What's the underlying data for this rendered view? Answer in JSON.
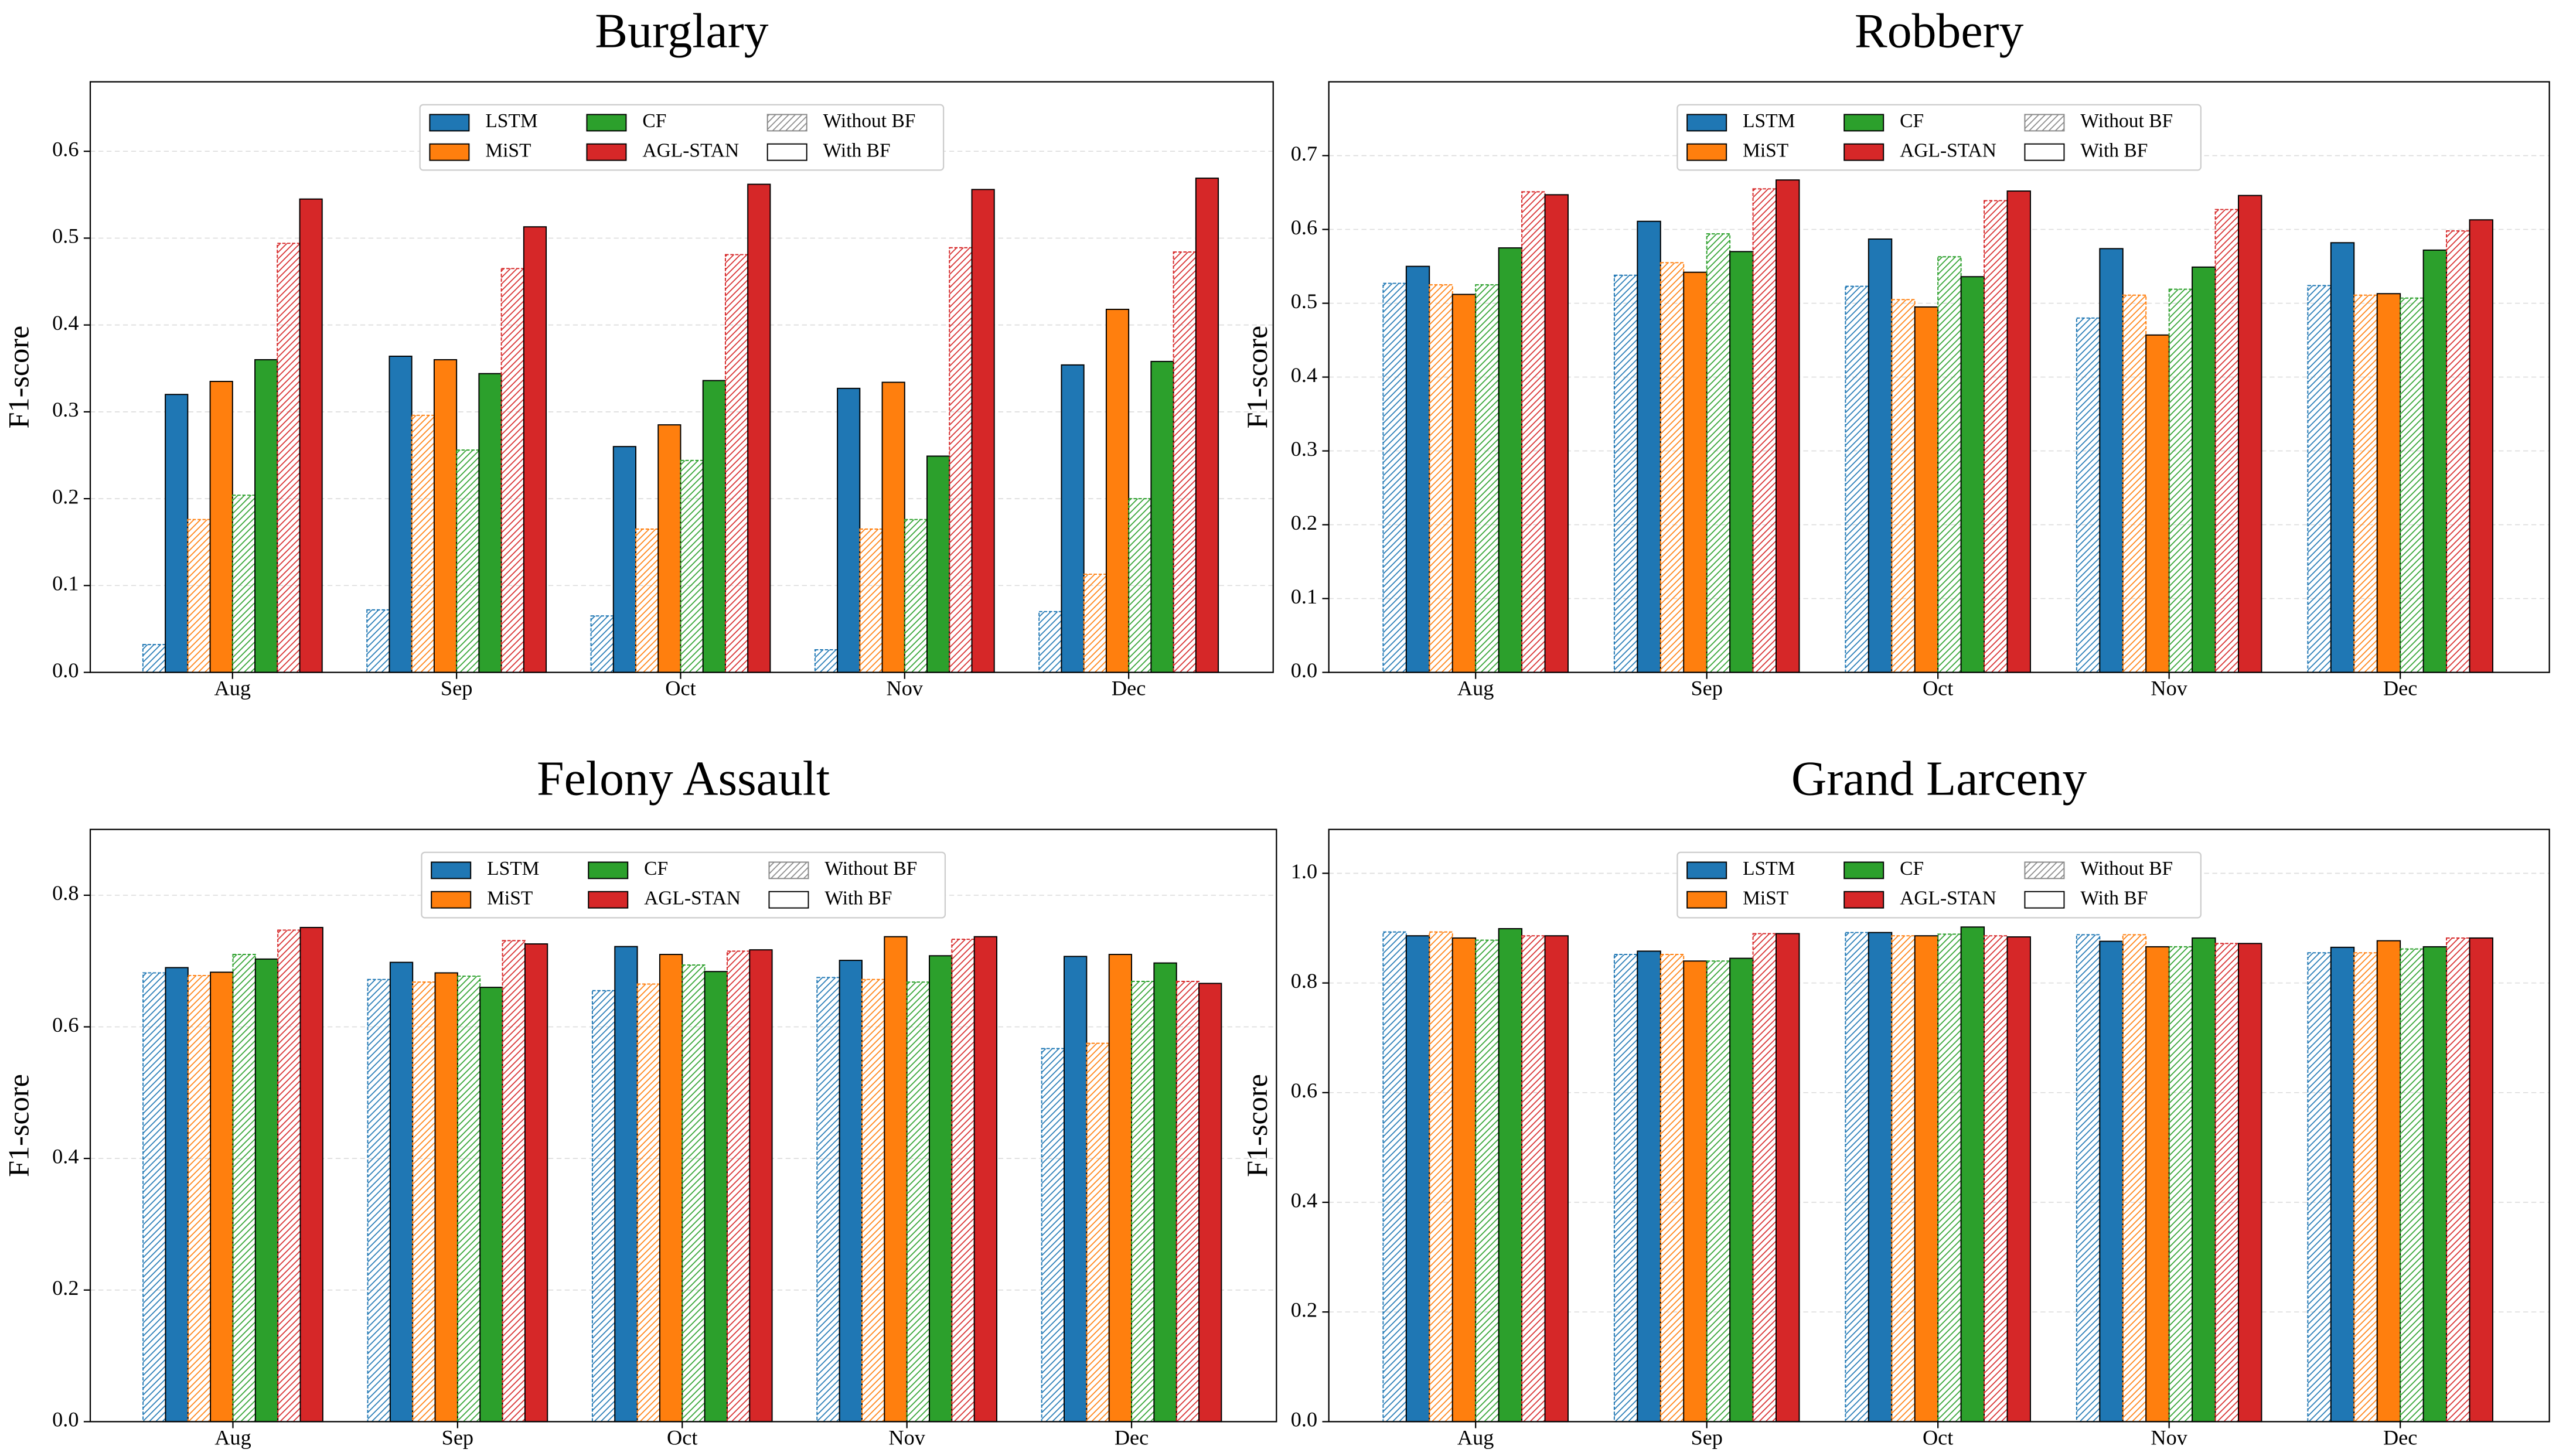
{
  "chart_data": [
    {
      "type": "bar",
      "title": "Burglary",
      "y_label": "F1-score",
      "grid": true,
      "categories": [
        "Aug",
        "Sep",
        "Oct",
        "Nov",
        "Dec"
      ],
      "variants": [
        {
          "name": "Without BF",
          "hatched": true
        },
        {
          "name": "With BF",
          "hatched": false
        }
      ],
      "ylim": [
        0,
        0.68
      ],
      "yticks": [
        {
          "value": 0,
          "label": "0.0"
        },
        0.1,
        0.2,
        0.3,
        0.4,
        0.5,
        0.6
      ],
      "series": [
        {
          "name": "LSTM",
          "color": "#1f77b4",
          "values": [
            0.32,
            0.364,
            0.26,
            0.327,
            0.354
          ],
          "values_without_bf": [
            0.032,
            0.072,
            0.065,
            0.026,
            0.07
          ]
        },
        {
          "name": "MiST",
          "color": "#ff7f0e",
          "values": [
            0.335,
            0.36,
            0.285,
            0.334,
            0.418
          ],
          "values_without_bf": [
            0.176,
            0.296,
            0.165,
            0.165,
            0.113
          ]
        },
        {
          "name": "CF",
          "color": "#2ca02c",
          "values": [
            0.36,
            0.344,
            0.336,
            0.249,
            0.358
          ],
          "values_without_bf": [
            0.204,
            0.256,
            0.244,
            0.176,
            0.2
          ]
        },
        {
          "name": "AGL-STAN",
          "color": "#d62728",
          "values": [
            0.545,
            0.513,
            0.562,
            0.556,
            0.569
          ],
          "values_without_bf": [
            0.494,
            0.465,
            0.481,
            0.489,
            0.484
          ]
        }
      ]
    },
    {
      "type": "bar",
      "title": "Robbery",
      "y_label": "F1-score",
      "grid": true,
      "categories": [
        "Aug",
        "Sep",
        "Oct",
        "Nov",
        "Dec"
      ],
      "variants": [
        {
          "name": "Without BF",
          "hatched": true
        },
        {
          "name": "With BF",
          "hatched": false
        }
      ],
      "ylim": [
        0,
        0.8
      ],
      "yticks": [
        {
          "value": 0,
          "label": "0.0"
        },
        0.1,
        0.2,
        0.3,
        0.4,
        0.5,
        0.6,
        0.7
      ],
      "series": [
        {
          "name": "LSTM",
          "color": "#1f77b4",
          "values": [
            0.55,
            0.611,
            0.587,
            0.574,
            0.582
          ],
          "values_without_bf": [
            0.527,
            0.538,
            0.523,
            0.48,
            0.524
          ]
        },
        {
          "name": "MiST",
          "color": "#ff7f0e",
          "values": [
            0.512,
            0.542,
            0.495,
            0.457,
            0.513
          ],
          "values_without_bf": [
            0.525,
            0.555,
            0.505,
            0.511,
            0.511
          ]
        },
        {
          "name": "CF",
          "color": "#2ca02c",
          "values": [
            0.575,
            0.57,
            0.536,
            0.549,
            0.572
          ],
          "values_without_bf": [
            0.525,
            0.594,
            0.563,
            0.519,
            0.507
          ]
        },
        {
          "name": "AGL-STAN",
          "color": "#d62728",
          "values": [
            0.647,
            0.667,
            0.652,
            0.646,
            0.613
          ],
          "values_without_bf": [
            0.651,
            0.655,
            0.639,
            0.627,
            0.598
          ]
        }
      ]
    },
    {
      "type": "bar",
      "title": "Felony Assault",
      "y_label": "F1-score",
      "grid": true,
      "categories": [
        "Aug",
        "Sep",
        "Oct",
        "Nov",
        "Dec"
      ],
      "variants": [
        {
          "name": "Without BF",
          "hatched": true
        },
        {
          "name": "With BF",
          "hatched": false
        }
      ],
      "ylim": [
        0,
        0.9
      ],
      "yticks": [
        {
          "value": 0,
          "label": "0.0"
        },
        0.2,
        0.4,
        0.6,
        0.8
      ],
      "series": [
        {
          "name": "LSTM",
          "color": "#1f77b4",
          "values": [
            0.69,
            0.698,
            0.722,
            0.701,
            0.707
          ],
          "values_without_bf": [
            0.682,
            0.672,
            0.655,
            0.675,
            0.567
          ]
        },
        {
          "name": "MiST",
          "color": "#ff7f0e",
          "values": [
            0.683,
            0.682,
            0.71,
            0.737,
            0.71
          ],
          "values_without_bf": [
            0.678,
            0.668,
            0.665,
            0.672,
            0.575
          ]
        },
        {
          "name": "CF",
          "color": "#2ca02c",
          "values": [
            0.703,
            0.66,
            0.684,
            0.708,
            0.697
          ],
          "values_without_bf": [
            0.71,
            0.677,
            0.694,
            0.668,
            0.669
          ]
        },
        {
          "name": "AGL-STAN",
          "color": "#d62728",
          "values": [
            0.751,
            0.726,
            0.717,
            0.737,
            0.666
          ],
          "values_without_bf": [
            0.747,
            0.731,
            0.715,
            0.733,
            0.669
          ]
        }
      ]
    },
    {
      "type": "bar",
      "title": "Grand Larceny",
      "y_label": "F1-score",
      "grid": true,
      "categories": [
        "Aug",
        "Sep",
        "Oct",
        "Nov",
        "Dec"
      ],
      "variants": [
        {
          "name": "Without BF",
          "hatched": true
        },
        {
          "name": "With BF",
          "hatched": false
        }
      ],
      "ylim": [
        0,
        1.08
      ],
      "yticks": [
        {
          "value": 0,
          "label": "0.0"
        },
        0.2,
        0.4,
        0.6,
        0.8,
        {
          "value": 1,
          "label": "1.0"
        }
      ],
      "series": [
        {
          "name": "LSTM",
          "color": "#1f77b4",
          "values": [
            0.886,
            0.858,
            0.892,
            0.876,
            0.865
          ],
          "values_without_bf": [
            0.893,
            0.852,
            0.892,
            0.888,
            0.855
          ]
        },
        {
          "name": "MiST",
          "color": "#ff7f0e",
          "values": [
            0.882,
            0.84,
            0.886,
            0.866,
            0.877
          ],
          "values_without_bf": [
            0.893,
            0.852,
            0.886,
            0.888,
            0.855
          ]
        },
        {
          "name": "CF",
          "color": "#2ca02c",
          "values": [
            0.899,
            0.845,
            0.902,
            0.882,
            0.866
          ],
          "values_without_bf": [
            0.878,
            0.84,
            0.889,
            0.866,
            0.862
          ]
        },
        {
          "name": "AGL-STAN",
          "color": "#d62728",
          "values": [
            0.886,
            0.89,
            0.884,
            0.872,
            0.882
          ],
          "values_without_bf": [
            0.886,
            0.89,
            0.886,
            0.872,
            0.882
          ]
        }
      ]
    }
  ]
}
